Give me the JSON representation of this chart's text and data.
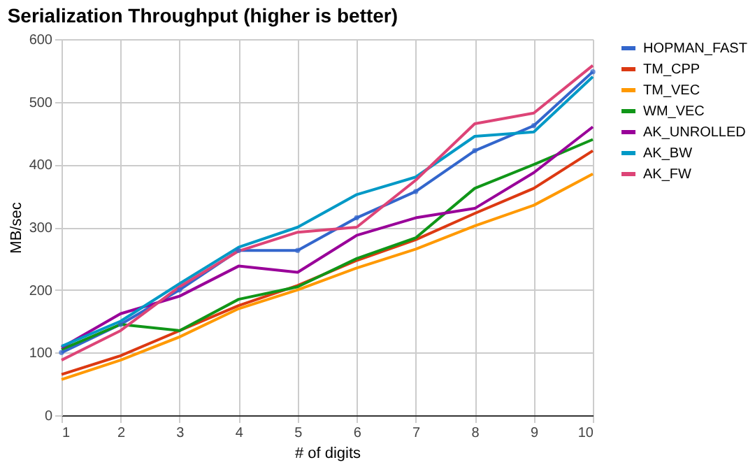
{
  "chart_data": {
    "type": "line",
    "title": "Serialization Throughput (higher is better)",
    "xlabel": "# of digits",
    "ylabel": "MB/sec",
    "x": [
      1,
      2,
      3,
      4,
      5,
      6,
      7,
      8,
      9,
      10
    ],
    "xlim": [
      1,
      10
    ],
    "xticks": [
      1,
      2,
      3,
      4,
      5,
      6,
      7,
      8,
      9,
      10
    ],
    "ylim": [
      0,
      600
    ],
    "yticks": [
      0,
      100,
      200,
      300,
      400,
      500,
      600
    ],
    "grid": true,
    "legend": "right",
    "line_style": "solid",
    "series": [
      {
        "name": "HOPMAN_FAST",
        "color": "#3366cc",
        "marker": "circle",
        "values": [
          100,
          145,
          200,
          263,
          263,
          315,
          357,
          422,
          462,
          548
        ]
      },
      {
        "name": "TM_CPP",
        "color": "#dc3912",
        "marker": "none",
        "values": [
          65,
          95,
          135,
          175,
          207,
          247,
          280,
          322,
          362,
          422
        ]
      },
      {
        "name": "TM_VEC",
        "color": "#ff9900",
        "marker": "none",
        "values": [
          57,
          88,
          125,
          170,
          200,
          235,
          265,
          302,
          335,
          385
        ]
      },
      {
        "name": "WM_VEC",
        "color": "#109618",
        "marker": "none",
        "values": [
          105,
          145,
          135,
          185,
          205,
          250,
          283,
          362,
          400,
          440
        ]
      },
      {
        "name": "AK_UNROLLED",
        "color": "#990099",
        "marker": "none",
        "values": [
          108,
          162,
          190,
          238,
          228,
          287,
          315,
          330,
          387,
          460
        ]
      },
      {
        "name": "AK_BW",
        "color": "#0099c6",
        "marker": "none",
        "values": [
          110,
          150,
          210,
          268,
          300,
          352,
          380,
          445,
          452,
          540
        ]
      },
      {
        "name": "AK_FW",
        "color": "#dd4477",
        "marker": "none",
        "values": [
          88,
          135,
          205,
          262,
          292,
          300,
          375,
          465,
          482,
          558
        ]
      }
    ]
  }
}
